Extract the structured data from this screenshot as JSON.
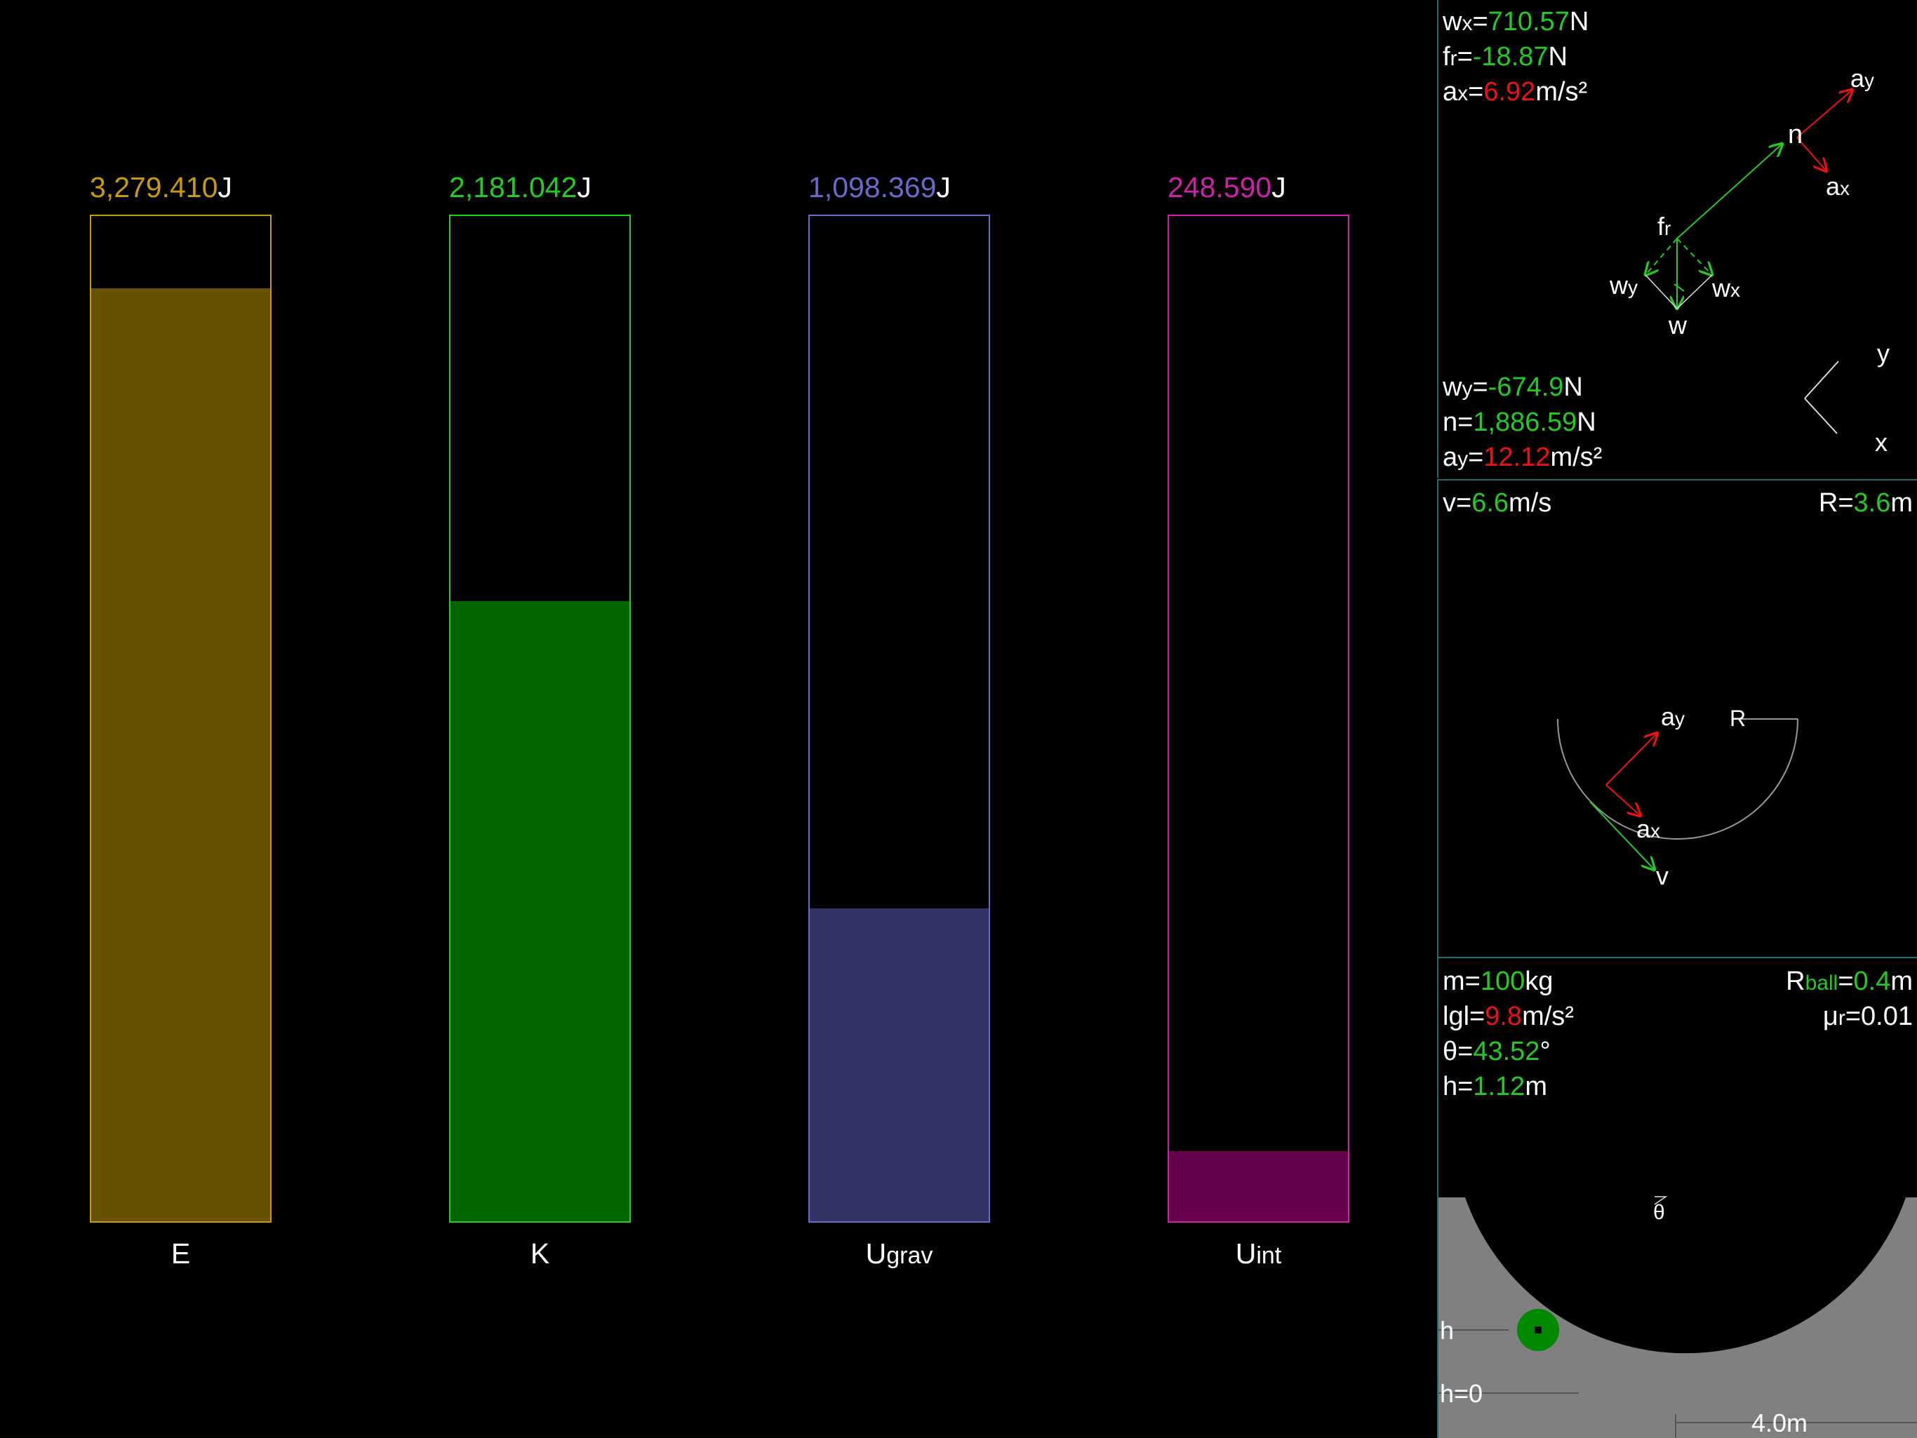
{
  "energy_bars": [
    {
      "value": "3,279.410",
      "unit": "J",
      "label": "E",
      "label_sub": "",
      "fraction": 0.928,
      "color": "#c99a0c",
      "fill": "#665200"
    },
    {
      "value": "2,181.042",
      "unit": "J",
      "label": "K",
      "label_sub": "",
      "fraction": 0.617,
      "color": "#22cc22",
      "fill": "#006600"
    },
    {
      "value": "1,098.369",
      "unit": "J",
      "label": "U",
      "label_sub": "grav",
      "fraction": 0.311,
      "color": "#6a6acc",
      "fill": "#333366"
    },
    {
      "value": "248.590",
      "unit": "J",
      "label": "U",
      "label_sub": "int",
      "fraction": 0.07,
      "color": "#cc22aa",
      "fill": "#66004c"
    }
  ],
  "forces": {
    "wx": {
      "name": "w",
      "sub": "x",
      "value": "710.57",
      "unit": "N"
    },
    "fr": {
      "name": "f",
      "sub": "r",
      "value": "-18.87",
      "unit": "N"
    },
    "ax": {
      "name": "a",
      "sub": "x",
      "value": "6.92",
      "unit": "m/s²"
    },
    "wy": {
      "name": "w",
      "sub": "y",
      "value": "-674.9",
      "unit": "N"
    },
    "n": {
      "name": "n",
      "sub": "",
      "value": "1,886.59",
      "unit": "N"
    },
    "ay": {
      "name": "a",
      "sub": "y",
      "value": "12.12",
      "unit": "m/s²"
    },
    "diagram_labels": {
      "ay_main": "a",
      "ay_sub": "y",
      "n": "n",
      "ax_main": "a",
      "ax_sub": "x",
      "fr_main": "f",
      "fr_sub": "r",
      "wy_main": "w",
      "wy_sub": "y",
      "wx_main": "w",
      "wx_sub": "x",
      "w": "w",
      "axis_y": "y",
      "axis_x": "x"
    }
  },
  "motion": {
    "v": {
      "name": "v",
      "value": "6.6",
      "unit": "m/s"
    },
    "R": {
      "name": "R",
      "value": "3.6",
      "unit": "m"
    },
    "diagram_labels": {
      "ay_main": "a",
      "ay_sub": "y",
      "R": "R",
      "ax_main": "a",
      "ax_sub": "x",
      "v": "v"
    }
  },
  "params": {
    "m": {
      "name": "m",
      "value": "100",
      "unit": "kg"
    },
    "g": {
      "name": "lgl",
      "value": "9.8",
      "unit": "m/s²"
    },
    "theta": {
      "name": "θ",
      "value": "43.52",
      "unit": "°"
    },
    "h": {
      "name": "h",
      "value": "1.12",
      "unit": "m"
    },
    "Rball": {
      "name": "R",
      "sub": "ball",
      "value": "0.4",
      "unit": "m"
    },
    "mu": {
      "name": "μ",
      "sub": "r",
      "value": "0.01"
    },
    "scene_labels": {
      "theta": "θ",
      "h": "h",
      "h0": "h=0",
      "scale": "4.0m"
    }
  },
  "colors": {
    "value_green": "#22cc22",
    "value_red": "#ee1111",
    "panel_border": "#1e6d6d",
    "scene_ground": "#808080",
    "ball": "#008800"
  }
}
